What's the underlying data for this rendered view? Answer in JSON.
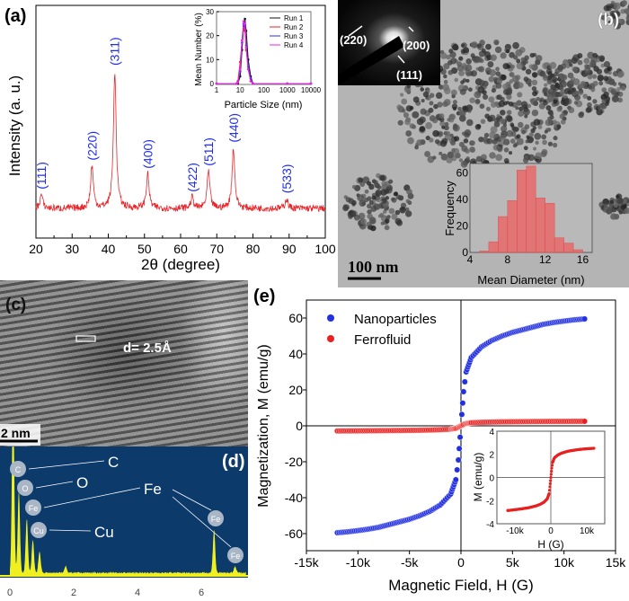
{
  "panel_labels": {
    "a": "(a)",
    "b": "(b)",
    "c": "(c)",
    "d": "(d)",
    "e": "(e)"
  },
  "colors": {
    "xrd": "#e8262b",
    "hkl": "#1f2ee6",
    "nano": "#2230e0",
    "ferro": "#e82020",
    "eds_bg": "#0c3a6b",
    "eds_spectrum": "#f0f020",
    "hist": "#e86a6a"
  },
  "chart_data": [
    {
      "id": "xrd",
      "type": "line",
      "xlabel": "2θ (degree)",
      "ylabel": "Intensity (a. u.)",
      "xlim": [
        20,
        100
      ],
      "xticks": [
        20,
        30,
        40,
        50,
        60,
        70,
        80,
        90,
        100
      ],
      "grid": false,
      "peaks": [
        {
          "two_theta": 21.5,
          "intensity": 10,
          "label": "(111)"
        },
        {
          "two_theta": 35.5,
          "intensity": 31,
          "label": "(220)"
        },
        {
          "two_theta": 41.8,
          "intensity": 100,
          "label": "(311)"
        },
        {
          "two_theta": 50.9,
          "intensity": 25,
          "label": "(400)"
        },
        {
          "two_theta": 63.2,
          "intensity": 8,
          "label": "(422)"
        },
        {
          "two_theta": 67.7,
          "intensity": 27,
          "label": "(511)"
        },
        {
          "two_theta": 74.6,
          "intensity": 44,
          "label": "(440)"
        },
        {
          "two_theta": 89.3,
          "intensity": 7,
          "label": "(533)"
        }
      ]
    },
    {
      "id": "dls-inset",
      "type": "line",
      "xlabel": "Particle Size (nm)",
      "ylabel": "Mean Number (%)",
      "xscale": "log",
      "xlim": [
        1,
        10000
      ],
      "ylim": [
        0,
        30
      ],
      "xticks": [
        "1",
        "10",
        "100",
        "1000",
        "10000"
      ],
      "yticks": [
        "0",
        "10",
        "20",
        "30"
      ],
      "legend": "top-right",
      "x": [
        1,
        7,
        8,
        10,
        12,
        14,
        16,
        18,
        22,
        28,
        35,
        1000,
        10000
      ],
      "series": [
        {
          "name": "Run 1",
          "color": "#111111",
          "values": [
            0,
            0,
            0,
            3,
            14,
            24,
            27,
            22,
            10,
            3,
            0,
            0,
            0
          ]
        },
        {
          "name": "Run 2",
          "color": "#ee2222",
          "values": [
            0,
            0,
            1,
            9,
            18,
            23,
            22,
            14,
            6,
            1,
            0,
            0,
            0
          ]
        },
        {
          "name": "Run 3",
          "color": "#2233ee",
          "values": [
            0,
            0,
            0.5,
            5,
            17,
            25,
            24,
            16,
            7,
            2,
            0,
            0,
            0
          ]
        },
        {
          "name": "Run 4",
          "color": "#ee22ee",
          "values": [
            0,
            0,
            0.5,
            6,
            18,
            26,
            25,
            15,
            6,
            1,
            0,
            0,
            0
          ]
        }
      ]
    },
    {
      "id": "size-histogram",
      "type": "bar",
      "xlabel": "Mean Diameter (nm)",
      "ylabel": "Frequency",
      "xlim": [
        4,
        17
      ],
      "ylim": [
        0,
        67
      ],
      "xticks": [
        4,
        8,
        12,
        16
      ],
      "yticks": [
        0,
        20,
        40,
        60
      ],
      "bin_edges": [
        5,
        6,
        7,
        8,
        9,
        10,
        11,
        12,
        13,
        14,
        15,
        16
      ],
      "values": [
        1,
        8,
        27,
        39,
        62,
        65,
        41,
        37,
        11,
        7,
        2
      ]
    },
    {
      "id": "eds",
      "type": "line",
      "xlabel": "",
      "xlim": [
        0,
        7.4
      ],
      "xticks": [
        0,
        2,
        4,
        6
      ],
      "ylim": [
        0,
        100
      ],
      "peaks": [
        {
          "energy": 0.1,
          "intensity": 200
        },
        {
          "energy": 0.28,
          "intensity": 90
        },
        {
          "energy": 0.53,
          "intensity": 60
        },
        {
          "energy": 0.72,
          "intensity": 37
        },
        {
          "energy": 0.93,
          "intensity": 24
        },
        {
          "energy": 1.75,
          "intensity": 8
        },
        {
          "energy": 6.4,
          "intensity": 48
        },
        {
          "energy": 7.06,
          "intensity": 7
        }
      ],
      "annotations": [
        {
          "text": "C",
          "badge": "C"
        },
        {
          "text": "O",
          "badge": "O"
        },
        {
          "text": "Fe",
          "badge": "Fe"
        },
        {
          "text": "Cu",
          "badge": "Cu"
        }
      ],
      "fe_k_badges": [
        "Fe",
        "Fe"
      ]
    },
    {
      "id": "mh",
      "type": "scatter",
      "xlabel": "Magnetic Field, H (G)",
      "ylabel": "Magnetization, M (emu/g)",
      "xlim": [
        -15000,
        15000
      ],
      "ylim": [
        -70,
        70
      ],
      "xticks": [
        "-15k",
        "-10k",
        "-5k",
        "0",
        "5k",
        "10k",
        "15k"
      ],
      "yticks": [
        "-60",
        "-40",
        "-20",
        "0",
        "20",
        "40",
        "60"
      ],
      "legend": "top-left",
      "x": [
        -12000,
        -11000,
        -10000,
        -9000,
        -8000,
        -7000,
        -6000,
        -5000,
        -4000,
        -3000,
        -2000,
        -1000,
        -500,
        -250,
        250,
        500,
        1000,
        2000,
        3000,
        4000,
        5000,
        6000,
        7000,
        8000,
        9000,
        10000,
        11000,
        12000
      ],
      "series": [
        {
          "name": "Nanoparticles",
          "values": [
            -59.5,
            -59,
            -58.3,
            -57.5,
            -56.5,
            -55,
            -53.5,
            -52,
            -50,
            -47.5,
            -44,
            -38,
            -30,
            -19,
            19,
            30,
            38,
            44,
            47.5,
            50,
            52,
            53.5,
            55,
            56.5,
            57.5,
            58.3,
            59,
            59.5
          ]
        },
        {
          "name": "Ferrofluid",
          "values": [
            -2.85,
            -2.82,
            -2.78,
            -2.74,
            -2.7,
            -2.65,
            -2.6,
            -2.52,
            -2.44,
            -2.32,
            -2.15,
            -1.85,
            -1.4,
            -0.8,
            0.8,
            1.3,
            1.7,
            1.95,
            2.1,
            2.2,
            2.28,
            2.33,
            2.38,
            2.42,
            2.45,
            2.48,
            2.5,
            2.52
          ]
        }
      ]
    },
    {
      "id": "mh-inset",
      "type": "scatter",
      "xlabel": "H (G)",
      "ylabel": "M (emu/g)",
      "xlim": [
        -15000,
        15000
      ],
      "ylim": [
        -4,
        4
      ],
      "xticks": [
        "-10k",
        "0",
        "10k"
      ],
      "yticks": [
        "-4",
        "-2",
        "0",
        "2",
        "4"
      ],
      "series_ref": "Ferrofluid"
    }
  ],
  "saed": {
    "rings": [
      "(220)",
      "(200)",
      "(111)"
    ]
  },
  "tem_b": {
    "scale_bar": "100 nm"
  },
  "tem_c": {
    "d_spacing": "d= 2.5Å",
    "scale_bar": "2 nm"
  }
}
